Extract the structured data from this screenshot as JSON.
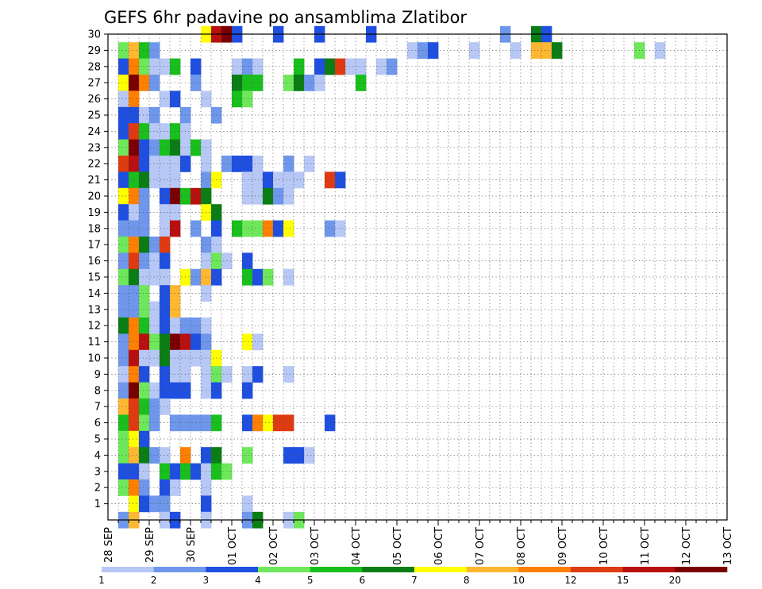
{
  "chart_data": {
    "type": "heatmap",
    "title": "GEFS 6hr padavine po ansamblima Zlatibor",
    "xlabel": "",
    "ylabel": "",
    "grid": true,
    "x_start": "28 SEP",
    "x_end": "13 OCT",
    "x_tick_labels": [
      "28 SEP",
      "29 SEP",
      "30 SEP",
      "01 OCT",
      "02 OCT",
      "03 OCT",
      "04 OCT",
      "05 OCT",
      "06 OCT",
      "07 OCT",
      "08 OCT",
      "09 OCT",
      "10 OCT",
      "11 OCT",
      "12 OCT",
      "13 OCT"
    ],
    "y_tick_labels": [
      "1",
      "2",
      "3",
      "4",
      "5",
      "6",
      "7",
      "8",
      "9",
      "10",
      "11",
      "12",
      "13",
      "14",
      "15",
      "16",
      "17",
      "18",
      "19",
      "20",
      "21",
      "22",
      "23",
      "24",
      "25",
      "26",
      "27",
      "28",
      "29",
      "30"
    ],
    "ylim": [
      0,
      30
    ],
    "colorbar": {
      "colors": [
        "#b7c8f6",
        "#6e97ec",
        "#1f4fe0",
        "#6ee85a",
        "#19bf1d",
        "#0a7d14",
        "#ffff00",
        "#ffb732",
        "#ff8000",
        "#e03a10",
        "#b80f0f",
        "#7a0000"
      ],
      "labels": [
        "1",
        "2",
        "3",
        "4",
        "5",
        "6",
        "7",
        "8",
        "10",
        "12",
        "15",
        "20"
      ]
    },
    "cells": [
      [
        30,
        9,
        [
          7,
          11,
          12,
          3
        ]
      ],
      [
        30,
        0,
        [
          0,
          0,
          0,
          3
        ]
      ],
      [
        30,
        0,
        [
          0,
          0,
          0,
          3
        ]
      ],
      [
        30,
        0,
        [
          0,
          0,
          0,
          0
        ]
      ],
      [
        30,
        0,
        [
          3,
          0,
          0,
          0
        ]
      ],
      [
        30,
        0,
        [
          0,
          0,
          0,
          0
        ]
      ],
      [
        30,
        0,
        [
          0,
          0,
          0,
          0
        ]
      ],
      [
        30,
        0,
        [
          0,
          2,
          0,
          0
        ]
      ],
      [
        30,
        0,
        [
          6,
          3,
          0,
          0
        ]
      ],
      [
        29,
        1,
        [
          4,
          8,
          5,
          2
        ]
      ],
      [
        29,
        0,
        [
          0,
          0,
          0,
          0
        ]
      ],
      [
        29,
        0,
        [
          0,
          0,
          0,
          0
        ]
      ],
      [
        29,
        0,
        [
          0,
          0,
          0,
          0
        ]
      ],
      [
        29,
        0,
        [
          0,
          0,
          0,
          0
        ]
      ],
      [
        29,
        0,
        [
          0,
          0,
          0,
          0
        ]
      ],
      [
        29,
        0,
        [
          0,
          0,
          0,
          0
        ]
      ],
      [
        29,
        0,
        [
          1,
          2,
          3,
          0
        ]
      ],
      [
        29,
        0,
        [
          0,
          0,
          1,
          0
        ]
      ],
      [
        29,
        0,
        [
          0,
          0,
          1,
          0
        ]
      ],
      [
        29,
        0,
        [
          8,
          8,
          6,
          0
        ]
      ],
      [
        29,
        0,
        [
          0,
          0,
          0,
          0
        ]
      ],
      [
        29,
        0,
        [
          0,
          0,
          4,
          0
        ]
      ],
      [
        29,
        0,
        [
          1,
          0,
          0,
          0
        ]
      ],
      [
        29,
        0,
        [
          0,
          0,
          0,
          0
        ]
      ],
      [
        29,
        0,
        [
          0,
          0,
          0,
          12
        ]
      ],
      [
        29,
        0,
        [
          12,
          9,
          0,
          0
        ]
      ],
      [
        28,
        1,
        [
          3,
          9,
          4,
          1
        ]
      ],
      [
        28,
        0,
        [
          1,
          5,
          0,
          3
        ]
      ],
      [
        28,
        0,
        [
          0,
          0,
          0,
          1
        ]
      ],
      [
        28,
        0,
        [
          2,
          1,
          0,
          0
        ]
      ],
      [
        28,
        0,
        [
          0,
          5,
          0,
          3
        ]
      ],
      [
        28,
        0,
        [
          6,
          10,
          1,
          1
        ]
      ],
      [
        28,
        0,
        [
          0,
          1,
          2,
          0
        ]
      ],
      [
        27,
        1,
        [
          7,
          12,
          9,
          2
        ]
      ],
      [
        27,
        0,
        [
          0,
          0,
          0,
          2
        ]
      ],
      [
        27,
        0,
        [
          0,
          0,
          0,
          6
        ]
      ],
      [
        27,
        0,
        [
          5,
          5,
          0,
          0
        ]
      ],
      [
        27,
        0,
        [
          4,
          6,
          2,
          1
        ]
      ],
      [
        27,
        0,
        [
          0,
          0,
          0,
          5
        ]
      ],
      [
        26,
        1,
        [
          1,
          9,
          0,
          0
        ]
      ],
      [
        26,
        0,
        [
          1,
          3,
          0,
          0
        ]
      ],
      [
        26,
        0,
        [
          1,
          0,
          0,
          5
        ]
      ],
      [
        26,
        0,
        [
          4,
          0,
          0,
          0
        ]
      ],
      [
        25,
        1,
        [
          3,
          3,
          1,
          2
        ]
      ],
      [
        25,
        0,
        [
          0,
          0,
          2,
          0
        ]
      ],
      [
        25,
        0,
        [
          0,
          2,
          0,
          0
        ]
      ],
      [
        24,
        1,
        [
          3,
          10,
          5,
          1
        ]
      ],
      [
        24,
        0,
        [
          1,
          5,
          1,
          0
        ]
      ],
      [
        23,
        1,
        [
          4,
          12,
          3,
          2
        ]
      ],
      [
        23,
        0,
        [
          5,
          6,
          1,
          5
        ]
      ],
      [
        23,
        0,
        [
          1,
          0,
          0,
          0
        ]
      ],
      [
        22,
        1,
        [
          10,
          11,
          3,
          1
        ]
      ],
      [
        22,
        0,
        [
          1,
          1,
          3,
          0
        ]
      ],
      [
        22,
        0,
        [
          1,
          0,
          2,
          3
        ]
      ],
      [
        22,
        0,
        [
          3,
          1,
          0,
          0
        ]
      ],
      [
        22,
        0,
        [
          2,
          0,
          1,
          0
        ]
      ],
      [
        21,
        1,
        [
          3,
          5,
          6,
          1
        ]
      ],
      [
        21,
        0,
        [
          1,
          1,
          0,
          0
        ]
      ],
      [
        21,
        0,
        [
          2,
          7,
          0,
          0
        ]
      ],
      [
        21,
        0,
        [
          1,
          1,
          3,
          1
        ]
      ],
      [
        21,
        0,
        [
          1,
          1,
          0,
          0
        ]
      ],
      [
        21,
        0,
        [
          10,
          3,
          0,
          0
        ]
      ],
      [
        20,
        1,
        [
          7,
          9,
          2,
          0
        ]
      ],
      [
        20,
        0,
        [
          3,
          12,
          5,
          11
        ]
      ],
      [
        20,
        0,
        [
          6,
          0,
          0,
          0
        ]
      ],
      [
        20,
        0,
        [
          1,
          1,
          6,
          2
        ]
      ],
      [
        20,
        0,
        [
          1,
          0,
          0,
          0
        ]
      ],
      [
        19,
        1,
        [
          3,
          1,
          2,
          0
        ]
      ],
      [
        19,
        0,
        [
          1,
          1,
          0,
          0
        ]
      ],
      [
        19,
        0,
        [
          7,
          6,
          0,
          0
        ]
      ],
      [
        18,
        1,
        [
          2,
          2,
          2,
          0
        ]
      ],
      [
        18,
        0,
        [
          1,
          11,
          0,
          2
        ]
      ],
      [
        18,
        0,
        [
          0,
          3,
          0,
          5
        ]
      ],
      [
        18,
        0,
        [
          4,
          4,
          9,
          3
        ]
      ],
      [
        18,
        0,
        [
          7,
          0,
          0,
          0
        ]
      ],
      [
        18,
        0,
        [
          2,
          1,
          0,
          0
        ]
      ],
      [
        17,
        1,
        [
          4,
          9,
          6,
          2
        ]
      ],
      [
        17,
        0,
        [
          10,
          0,
          0,
          0
        ]
      ],
      [
        17,
        0,
        [
          2,
          1,
          0,
          0
        ]
      ],
      [
        16,
        1,
        [
          2,
          10,
          2,
          1
        ]
      ],
      [
        16,
        0,
        [
          3,
          0,
          0,
          0
        ]
      ],
      [
        16,
        0,
        [
          1,
          4,
          1,
          0
        ]
      ],
      [
        16,
        0,
        [
          3,
          0,
          0,
          0
        ]
      ],
      [
        15,
        1,
        [
          4,
          6,
          1,
          1
        ]
      ],
      [
        15,
        0,
        [
          1,
          0,
          7,
          2
        ]
      ],
      [
        15,
        0,
        [
          8,
          3,
          0,
          0
        ]
      ],
      [
        15,
        0,
        [
          5,
          3,
          4,
          0
        ]
      ],
      [
        15,
        0,
        [
          1,
          0,
          0,
          0
        ]
      ],
      [
        14,
        1,
        [
          2,
          2,
          4,
          0
        ]
      ],
      [
        14,
        0,
        [
          3,
          8,
          0,
          0
        ]
      ],
      [
        14,
        0,
        [
          1,
          0,
          0,
          0
        ]
      ],
      [
        13,
        1,
        [
          2,
          2,
          4,
          1
        ]
      ],
      [
        13,
        0,
        [
          3,
          8,
          0,
          0
        ]
      ],
      [
        12,
        1,
        [
          6,
          9,
          5,
          1
        ]
      ],
      [
        12,
        0,
        [
          3,
          1,
          2,
          2
        ]
      ],
      [
        12,
        0,
        [
          1,
          0,
          0,
          0
        ]
      ],
      [
        11,
        1,
        [
          2,
          9,
          11,
          4
        ]
      ],
      [
        11,
        0,
        [
          6,
          12,
          11,
          3
        ]
      ],
      [
        11,
        0,
        [
          2,
          0,
          0,
          0
        ]
      ],
      [
        11,
        0,
        [
          7,
          1,
          0,
          0
        ]
      ],
      [
        10,
        1,
        [
          2,
          11,
          1,
          1
        ]
      ],
      [
        10,
        0,
        [
          6,
          1,
          1,
          1
        ]
      ],
      [
        10,
        0,
        [
          1,
          7,
          0,
          0
        ]
      ],
      [
        9,
        1,
        [
          1,
          9,
          3,
          0
        ]
      ],
      [
        9,
        0,
        [
          3,
          1,
          1,
          0
        ]
      ],
      [
        9,
        0,
        [
          1,
          4,
          1,
          0
        ]
      ],
      [
        9,
        0,
        [
          1,
          3,
          0,
          0
        ]
      ],
      [
        9,
        0,
        [
          1,
          0,
          0,
          0
        ]
      ],
      [
        8,
        1,
        [
          2,
          12,
          4,
          1
        ]
      ],
      [
        8,
        0,
        [
          3,
          3,
          3,
          0
        ]
      ],
      [
        8,
        0,
        [
          1,
          3,
          0,
          0
        ]
      ],
      [
        8,
        0,
        [
          3,
          0,
          0,
          0
        ]
      ],
      [
        7,
        1,
        [
          8,
          10,
          5,
          2
        ]
      ],
      [
        7,
        0,
        [
          1,
          0,
          0,
          0
        ]
      ],
      [
        6,
        1,
        [
          5,
          10,
          4,
          2
        ]
      ],
      [
        6,
        0,
        [
          0,
          2,
          2,
          2
        ]
      ],
      [
        6,
        0,
        [
          2,
          5,
          0,
          0
        ]
      ],
      [
        6,
        0,
        [
          3,
          9,
          7,
          10
        ]
      ],
      [
        6,
        0,
        [
          10,
          0,
          0,
          0
        ]
      ],
      [
        6,
        0,
        [
          3,
          0,
          0,
          0
        ]
      ],
      [
        5,
        1,
        [
          4,
          7,
          3,
          0
        ]
      ],
      [
        4,
        1,
        [
          4,
          8,
          6,
          2
        ]
      ],
      [
        4,
        0,
        [
          1,
          0,
          9,
          0
        ]
      ],
      [
        4,
        0,
        [
          3,
          6,
          0,
          0
        ]
      ],
      [
        4,
        0,
        [
          4,
          0,
          0,
          0
        ]
      ],
      [
        4,
        0,
        [
          3,
          3,
          1,
          0
        ]
      ],
      [
        3,
        1,
        [
          3,
          3,
          1,
          0
        ]
      ],
      [
        3,
        0,
        [
          5,
          3,
          5,
          3
        ]
      ],
      [
        3,
        0,
        [
          1,
          5,
          4,
          0
        ]
      ],
      [
        2,
        1,
        [
          4,
          9,
          2,
          0
        ]
      ],
      [
        2,
        0,
        [
          3,
          1,
          0,
          0
        ]
      ],
      [
        2,
        0,
        [
          1,
          0,
          0,
          0
        ]
      ],
      [
        1,
        1,
        [
          0,
          7,
          3,
          2
        ]
      ],
      [
        1,
        0,
        [
          2,
          0,
          0,
          0
        ]
      ],
      [
        1,
        0,
        [
          3,
          0,
          0,
          0
        ]
      ],
      [
        1,
        0,
        [
          1,
          0,
          0,
          0
        ]
      ],
      [
        0,
        1,
        [
          2,
          8,
          0,
          0
        ]
      ],
      [
        0,
        0,
        [
          1,
          3,
          0,
          0
        ]
      ],
      [
        0,
        0,
        [
          1,
          0,
          0,
          0
        ]
      ],
      [
        0,
        0,
        [
          2,
          6,
          0,
          0
        ]
      ],
      [
        0,
        0,
        [
          1,
          4,
          0,
          0
        ]
      ]
    ]
  }
}
